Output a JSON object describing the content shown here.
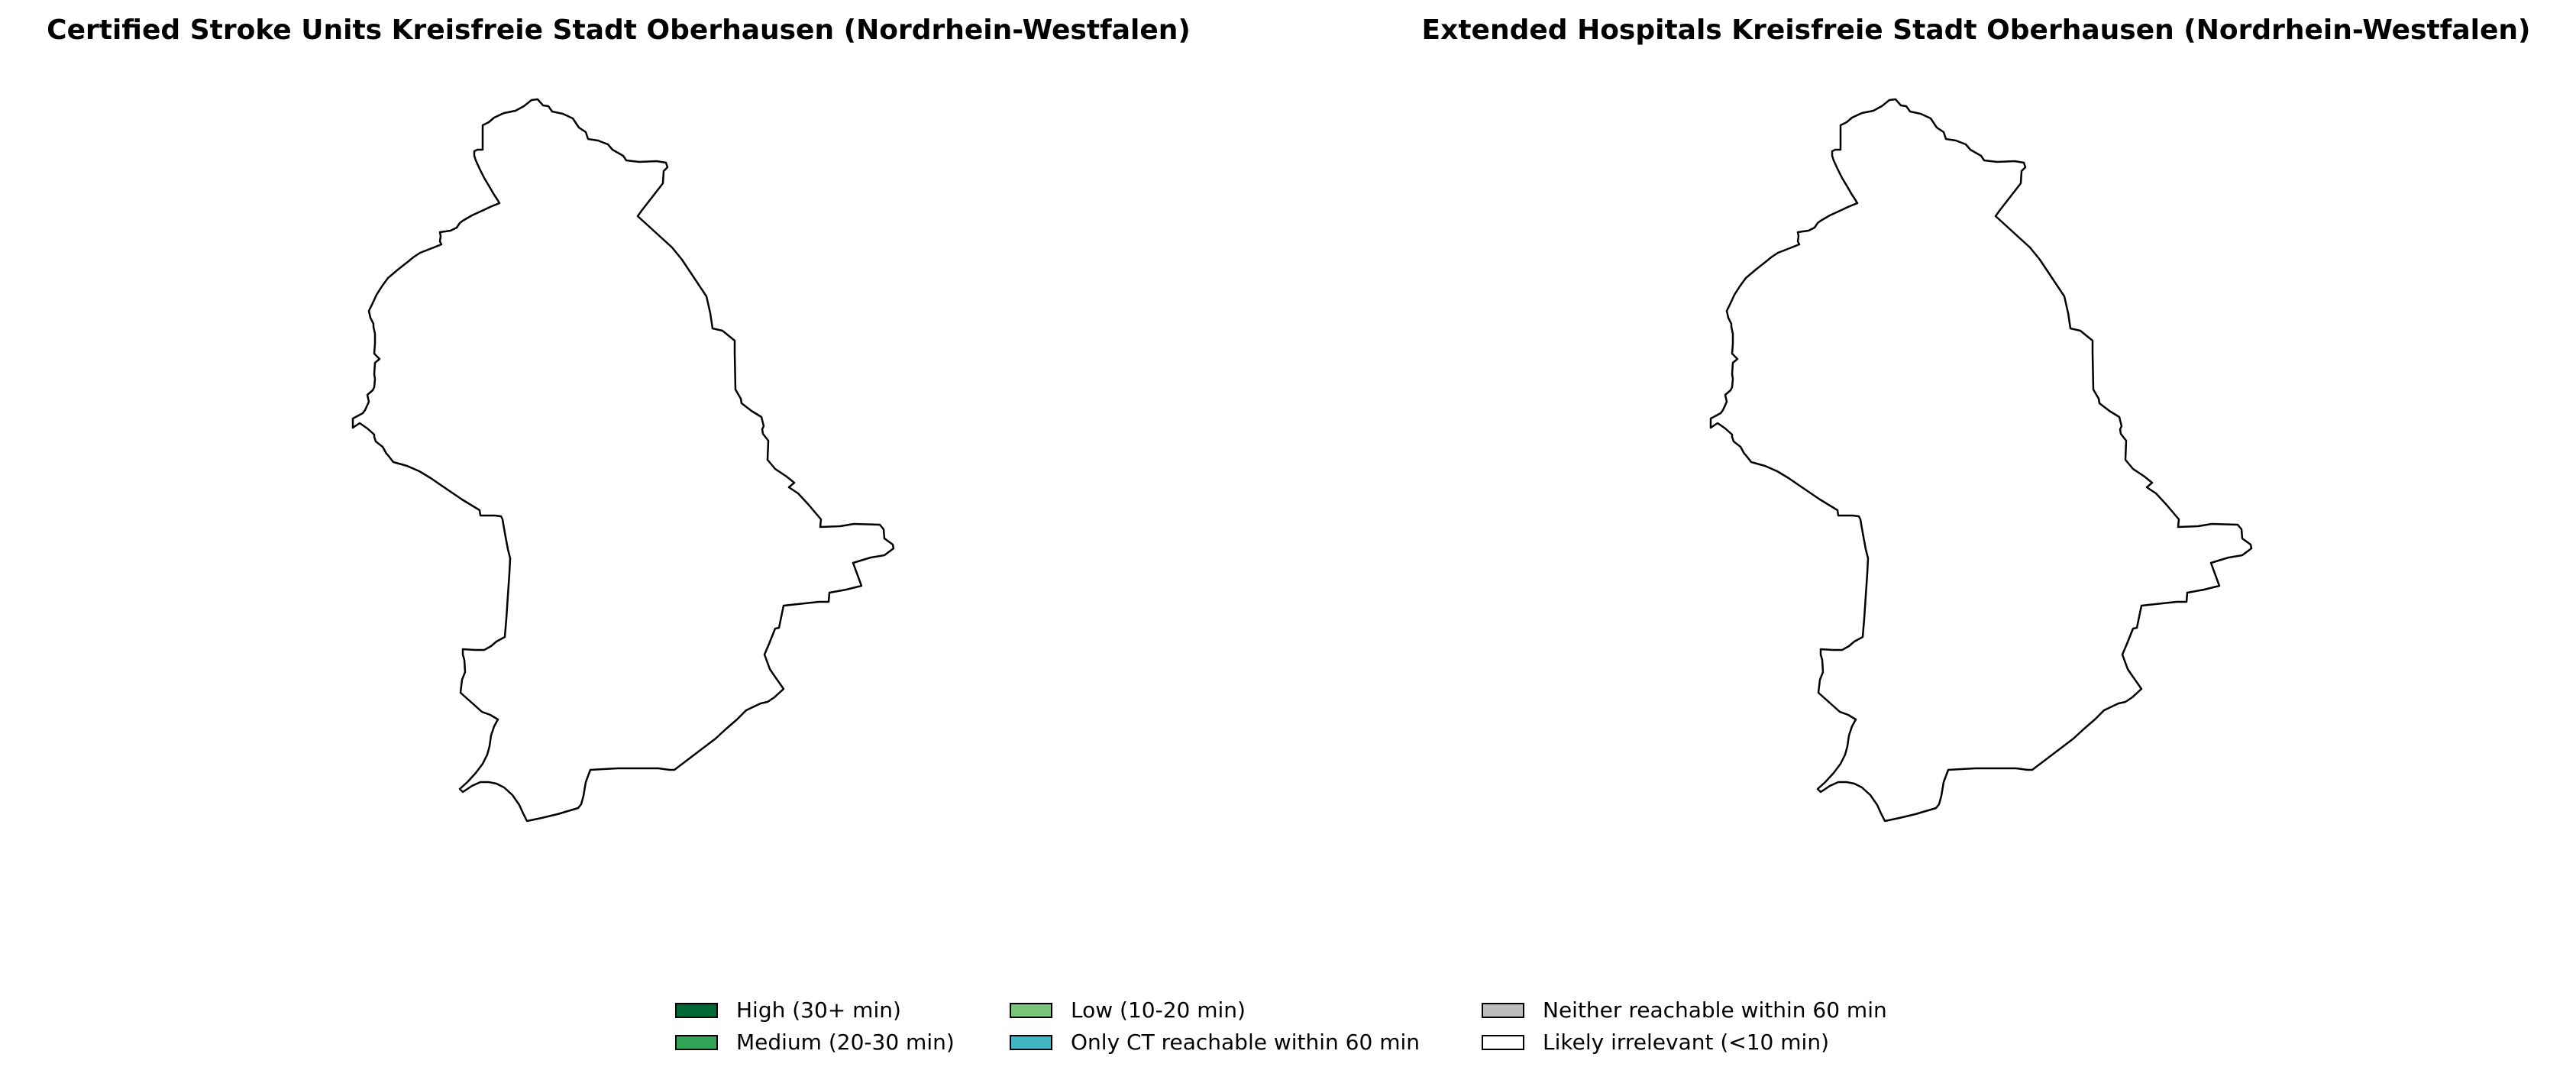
{
  "maps": [
    {
      "title": "Certified Stroke Units Kreisfreie Stadt Oberhausen (Nordrhein-Westfalen)",
      "region_fill": "#ffffff"
    },
    {
      "title": "Extended Hospitals Kreisfreie Stadt Oberhausen (Nordrhein-Westfalen)",
      "region_fill": "#ffffff"
    }
  ],
  "legend": {
    "items": [
      {
        "label": "High (30+ min)",
        "color": "#006837"
      },
      {
        "label": "Medium (20-30 min)",
        "color": "#31a354"
      },
      {
        "label": "Low (10-20 min)",
        "color": "#78c679"
      },
      {
        "label": "Only CT reachable within 60 min",
        "color": "#41b6c4"
      },
      {
        "label": "Neither reachable within 60 min",
        "color": "#bdbdbd"
      },
      {
        "label": "Likely irrelevant (<10 min)",
        "color": "#ffffff"
      }
    ]
  }
}
